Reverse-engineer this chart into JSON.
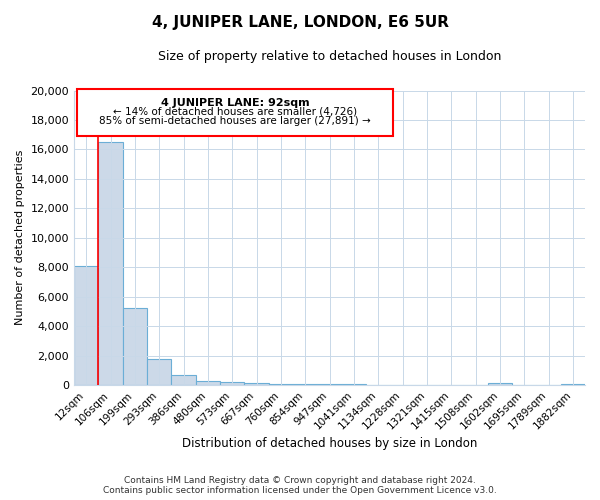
{
  "title": "4, JUNIPER LANE, LONDON, E6 5UR",
  "subtitle": "Size of property relative to detached houses in London",
  "xlabel": "Distribution of detached houses by size in London",
  "ylabel": "Number of detached properties",
  "bar_labels": [
    "12sqm",
    "106sqm",
    "199sqm",
    "293sqm",
    "386sqm",
    "480sqm",
    "573sqm",
    "667sqm",
    "760sqm",
    "854sqm",
    "947sqm",
    "1041sqm",
    "1134sqm",
    "1228sqm",
    "1321sqm",
    "1415sqm",
    "1508sqm",
    "1602sqm",
    "1695sqm",
    "1789sqm",
    "1882sqm"
  ],
  "bar_values": [
    8100,
    16500,
    5200,
    1750,
    700,
    280,
    200,
    120,
    80,
    60,
    50,
    40,
    30,
    25,
    20,
    18,
    15,
    130,
    10,
    8,
    100
  ],
  "bar_color": "#ccd9e8",
  "bar_edge_color": "#6baed6",
  "ylim": [
    0,
    20000
  ],
  "yticks": [
    0,
    2000,
    4000,
    6000,
    8000,
    10000,
    12000,
    14000,
    16000,
    18000,
    20000
  ],
  "annotation_title": "4 JUNIPER LANE: 92sqm",
  "annotation_line1": "← 14% of detached houses are smaller (4,726)",
  "annotation_line2": "85% of semi-detached houses are larger (27,891) →",
  "footer_line1": "Contains HM Land Registry data © Crown copyright and database right 2024.",
  "footer_line2": "Contains public sector information licensed under the Open Government Licence v3.0.",
  "bg_color": "#ffffff",
  "plot_bg_color": "#ffffff",
  "grid_color": "#c8d8e8"
}
